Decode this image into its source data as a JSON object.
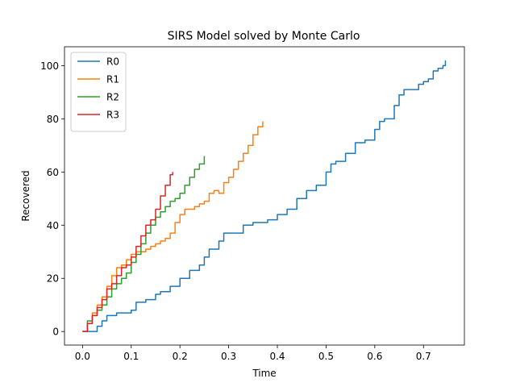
{
  "chart_data": {
    "type": "line",
    "title": "SIRS Model solved by Monte Carlo",
    "xlabel": "Time",
    "ylabel": "Recovered",
    "xlim": [
      -0.037,
      0.784
    ],
    "ylim": [
      -5.1,
      107.1
    ],
    "xticks": [
      "0.0",
      "0.1",
      "0.2",
      "0.3",
      "0.4",
      "0.5",
      "0.6",
      "0.7"
    ],
    "xtick_values": [
      0.0,
      0.1,
      0.2,
      0.3,
      0.4,
      0.5,
      0.6,
      0.7
    ],
    "yticks": [
      "0",
      "20",
      "40",
      "60",
      "80",
      "100"
    ],
    "ytick_values": [
      0,
      20,
      40,
      60,
      80,
      100
    ],
    "grid": false,
    "legend_position": "top-left",
    "series": [
      {
        "name": "R0",
        "color": "#1f77b4",
        "points": [
          [
            0.0,
            0
          ],
          [
            0.01,
            0
          ],
          [
            0.02,
            0
          ],
          [
            0.03,
            2
          ],
          [
            0.04,
            4
          ],
          [
            0.05,
            6
          ],
          [
            0.06,
            6
          ],
          [
            0.07,
            7
          ],
          [
            0.09,
            7
          ],
          [
            0.1,
            8
          ],
          [
            0.11,
            11
          ],
          [
            0.13,
            12
          ],
          [
            0.14,
            12
          ],
          [
            0.15,
            14
          ],
          [
            0.16,
            15
          ],
          [
            0.18,
            17
          ],
          [
            0.2,
            20
          ],
          [
            0.22,
            23
          ],
          [
            0.24,
            25
          ],
          [
            0.25,
            28
          ],
          [
            0.26,
            31
          ],
          [
            0.28,
            34
          ],
          [
            0.29,
            37
          ],
          [
            0.31,
            37
          ],
          [
            0.33,
            40
          ],
          [
            0.35,
            41
          ],
          [
            0.38,
            42
          ],
          [
            0.4,
            44
          ],
          [
            0.42,
            46
          ],
          [
            0.44,
            50
          ],
          [
            0.46,
            53
          ],
          [
            0.47,
            53
          ],
          [
            0.48,
            55
          ],
          [
            0.5,
            60
          ],
          [
            0.51,
            63
          ],
          [
            0.52,
            64
          ],
          [
            0.54,
            67
          ],
          [
            0.56,
            71
          ],
          [
            0.58,
            72
          ],
          [
            0.6,
            76
          ],
          [
            0.61,
            79
          ],
          [
            0.62,
            80
          ],
          [
            0.64,
            85
          ],
          [
            0.65,
            89
          ],
          [
            0.66,
            91
          ],
          [
            0.68,
            91
          ],
          [
            0.69,
            93
          ],
          [
            0.7,
            94
          ],
          [
            0.71,
            95
          ],
          [
            0.72,
            98
          ],
          [
            0.73,
            99
          ],
          [
            0.74,
            100
          ],
          [
            0.745,
            102
          ]
        ]
      },
      {
        "name": "R1",
        "color": "#ff7f0e",
        "points": [
          [
            0.0,
            0
          ],
          [
            0.01,
            3
          ],
          [
            0.02,
            7
          ],
          [
            0.03,
            10
          ],
          [
            0.04,
            13
          ],
          [
            0.05,
            17
          ],
          [
            0.06,
            21
          ],
          [
            0.07,
            24
          ],
          [
            0.08,
            25
          ],
          [
            0.09,
            27
          ],
          [
            0.1,
            29
          ],
          [
            0.11,
            30
          ],
          [
            0.12,
            30
          ],
          [
            0.13,
            31
          ],
          [
            0.14,
            32
          ],
          [
            0.15,
            33
          ],
          [
            0.16,
            34
          ],
          [
            0.17,
            35
          ],
          [
            0.18,
            37
          ],
          [
            0.19,
            41
          ],
          [
            0.2,
            44
          ],
          [
            0.21,
            46
          ],
          [
            0.22,
            46
          ],
          [
            0.23,
            47
          ],
          [
            0.24,
            48
          ],
          [
            0.25,
            49
          ],
          [
            0.26,
            52
          ],
          [
            0.27,
            53
          ],
          [
            0.28,
            52
          ],
          [
            0.29,
            56
          ],
          [
            0.3,
            58
          ],
          [
            0.31,
            61
          ],
          [
            0.32,
            64
          ],
          [
            0.33,
            67
          ],
          [
            0.34,
            70
          ],
          [
            0.35,
            74
          ],
          [
            0.36,
            77
          ],
          [
            0.37,
            79
          ]
        ]
      },
      {
        "name": "R2",
        "color": "#2ca02c",
        "points": [
          [
            0.0,
            0
          ],
          [
            0.01,
            4
          ],
          [
            0.02,
            6
          ],
          [
            0.03,
            8
          ],
          [
            0.04,
            10
          ],
          [
            0.05,
            13
          ],
          [
            0.06,
            16
          ],
          [
            0.07,
            18
          ],
          [
            0.08,
            20
          ],
          [
            0.09,
            22
          ],
          [
            0.1,
            26
          ],
          [
            0.11,
            29
          ],
          [
            0.12,
            33
          ],
          [
            0.13,
            37
          ],
          [
            0.14,
            40
          ],
          [
            0.15,
            43
          ],
          [
            0.16,
            45
          ],
          [
            0.17,
            47
          ],
          [
            0.18,
            49
          ],
          [
            0.19,
            50
          ],
          [
            0.2,
            52
          ],
          [
            0.21,
            55
          ],
          [
            0.22,
            58
          ],
          [
            0.23,
            61
          ],
          [
            0.24,
            63
          ],
          [
            0.25,
            66
          ]
        ]
      },
      {
        "name": "R3",
        "color": "#d62728",
        "points": [
          [
            0.0,
            0
          ],
          [
            0.01,
            3
          ],
          [
            0.02,
            6
          ],
          [
            0.03,
            9
          ],
          [
            0.04,
            12
          ],
          [
            0.05,
            16
          ],
          [
            0.06,
            18
          ],
          [
            0.07,
            21
          ],
          [
            0.08,
            24
          ],
          [
            0.09,
            25
          ],
          [
            0.1,
            28
          ],
          [
            0.11,
            32
          ],
          [
            0.12,
            36
          ],
          [
            0.13,
            40
          ],
          [
            0.14,
            42
          ],
          [
            0.15,
            46
          ],
          [
            0.16,
            51
          ],
          [
            0.17,
            55
          ],
          [
            0.18,
            59
          ],
          [
            0.185,
            60
          ]
        ]
      }
    ]
  }
}
